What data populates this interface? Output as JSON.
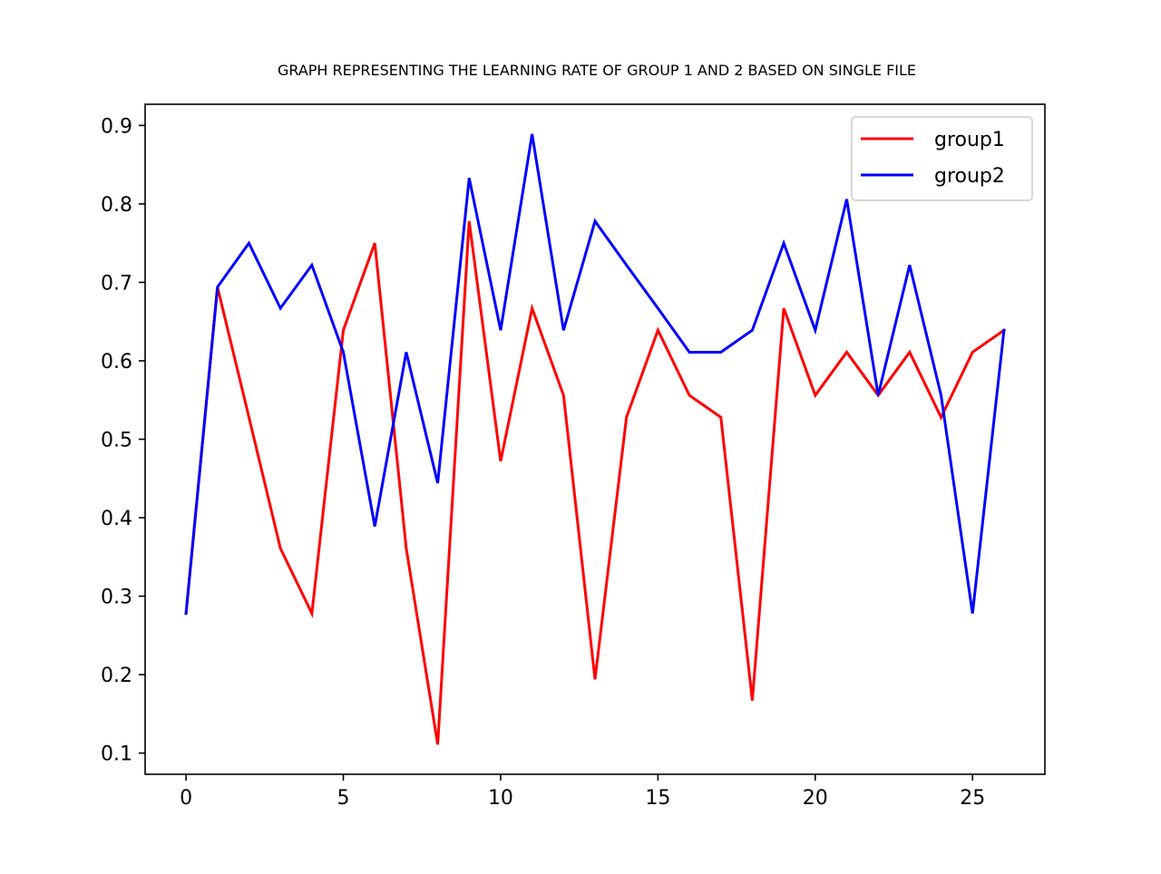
{
  "chart_data": {
    "type": "line",
    "title": "GRAPH REPRESENTING THE LEARNING RATE OF GROUP 1 AND 2 BASED ON SINGLE FILE",
    "xlabel": "",
    "ylabel": "",
    "xlim": [
      -1.3,
      27.3
    ],
    "ylim": [
      0.073,
      0.927
    ],
    "xticks": [
      0,
      5,
      10,
      15,
      20,
      25
    ],
    "yticks": [
      0.1,
      0.2,
      0.3,
      0.4,
      0.5,
      0.6,
      0.7,
      0.8,
      0.9
    ],
    "grid": false,
    "legend_position": "top-right",
    "x": [
      0,
      1,
      2,
      3,
      4,
      5,
      6,
      7,
      8,
      9,
      10,
      11,
      12,
      13,
      14,
      15,
      16,
      17,
      18,
      19,
      20,
      21,
      22,
      23,
      24,
      25,
      26
    ],
    "series": [
      {
        "name": "group1",
        "color": "#ff0000",
        "values": [
          0.278,
          0.694,
          0.528,
          0.361,
          0.278,
          0.639,
          0.75,
          0.361,
          0.111,
          0.778,
          0.472,
          0.667,
          0.556,
          0.194,
          0.528,
          0.639,
          0.556,
          0.528,
          0.167,
          0.667,
          0.556,
          0.611,
          0.556,
          0.611,
          0.528,
          0.611,
          0.639
        ]
      },
      {
        "name": "group2",
        "color": "#0000ff",
        "values": [
          0.278,
          0.694,
          0.75,
          0.667,
          0.722,
          0.611,
          0.389,
          0.611,
          0.444,
          0.833,
          0.639,
          0.889,
          0.639,
          0.778,
          0.722,
          0.667,
          0.611,
          0.611,
          0.639,
          0.75,
          0.639,
          0.806,
          0.556,
          0.722,
          0.556,
          0.278,
          0.639
        ]
      }
    ]
  }
}
